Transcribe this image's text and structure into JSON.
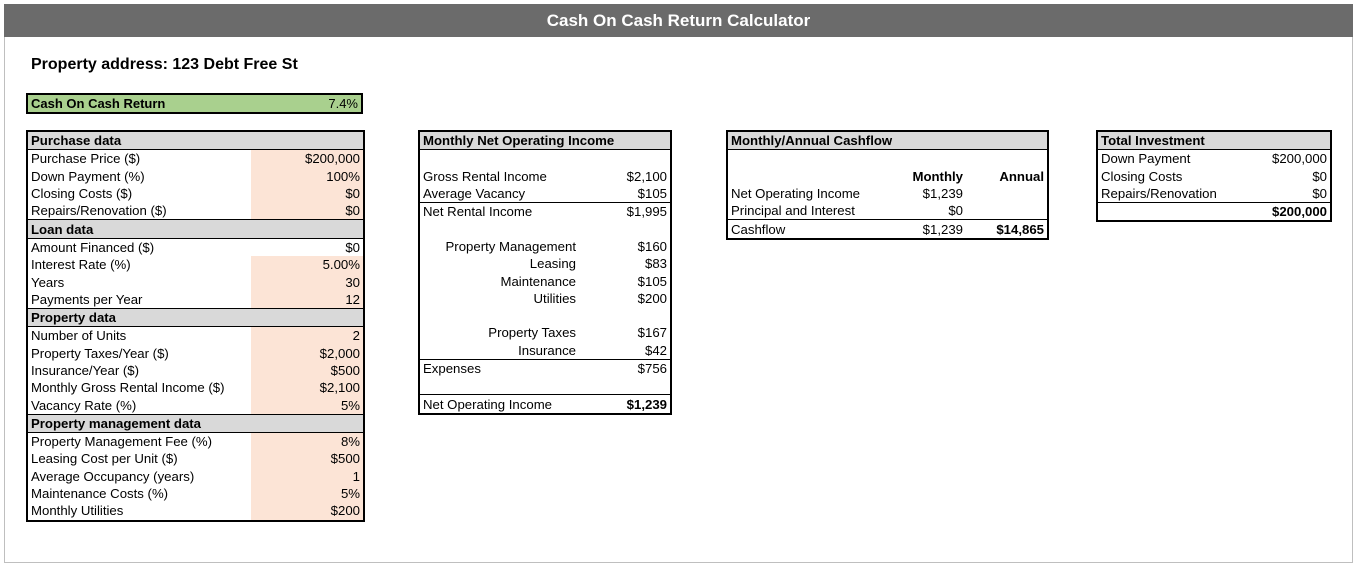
{
  "title": "Cash On Cash Return Calculator",
  "address_label": "Property address: 123 Debt Free St",
  "coc": {
    "label": "Cash On Cash Return",
    "value": "7.4%"
  },
  "purchase": {
    "header": "Purchase data",
    "rows": [
      {
        "label": "Purchase Price ($)",
        "value": "$200,000"
      },
      {
        "label": "Down Payment (%)",
        "value": "100%"
      },
      {
        "label": "Closing Costs ($)",
        "value": "$0"
      },
      {
        "label": "Repairs/Renovation ($)",
        "value": "$0"
      }
    ]
  },
  "loan": {
    "header": "Loan data",
    "rows": [
      {
        "label": "Amount Financed ($)",
        "value": "$0"
      },
      {
        "label": "Interest Rate (%)",
        "value": "5.00%"
      },
      {
        "label": "Years",
        "value": "30"
      },
      {
        "label": "Payments per Year",
        "value": "12"
      }
    ]
  },
  "property": {
    "header": "Property data",
    "rows": [
      {
        "label": "Number of Units",
        "value": "2"
      },
      {
        "label": "Property Taxes/Year ($)",
        "value": "$2,000"
      },
      {
        "label": "Insurance/Year ($)",
        "value": "$500"
      },
      {
        "label": "Monthly Gross Rental Income ($)",
        "value": "$2,100"
      },
      {
        "label": "Vacancy Rate (%)",
        "value": "5%"
      }
    ]
  },
  "management": {
    "header": "Property management data",
    "rows": [
      {
        "label": "Property Management Fee (%)",
        "value": "8%"
      },
      {
        "label": "Leasing Cost per Unit ($)",
        "value": "$500"
      },
      {
        "label": "Average Occupancy (years)",
        "value": "1"
      },
      {
        "label": "Maintenance Costs (%)",
        "value": "5%"
      },
      {
        "label": "Monthly Utilities",
        "value": "$200"
      }
    ]
  },
  "noi": {
    "header": "Monthly Net Operating Income",
    "gross": {
      "label": "Gross Rental Income",
      "value": "$2,100"
    },
    "vacancy": {
      "label": "Average Vacancy",
      "value": "$105"
    },
    "net_rental": {
      "label": "Net Rental Income",
      "value": "$1,995"
    },
    "mgmt": {
      "label": "Property Management",
      "value": "$160"
    },
    "leasing": {
      "label": "Leasing",
      "value": "$83"
    },
    "maintenance": {
      "label": "Maintenance",
      "value": "$105"
    },
    "utilities": {
      "label": "Utilities",
      "value": "$200"
    },
    "taxes": {
      "label": "Property Taxes",
      "value": "$167"
    },
    "insurance": {
      "label": "Insurance",
      "value": "$42"
    },
    "expenses": {
      "label": "Expenses",
      "value": "$756"
    },
    "total": {
      "label": "Net Operating Income",
      "value": "$1,239"
    }
  },
  "cashflow": {
    "header": "Monthly/Annual Cashflow",
    "col_monthly": "Monthly",
    "col_annual": "Annual",
    "noi": {
      "label": "Net Operating Income",
      "monthly": "$1,239"
    },
    "pi": {
      "label": "Principal and Interest",
      "monthly": "$0"
    },
    "cf": {
      "label": "Cashflow",
      "monthly": "$1,239",
      "annual": "$14,865"
    }
  },
  "investment": {
    "header": "Total Investment",
    "rows": [
      {
        "label": "Down Payment",
        "value": "$200,000"
      },
      {
        "label": "Closing Costs",
        "value": "$0"
      },
      {
        "label": "Repairs/Renovation",
        "value": "$0"
      }
    ],
    "total": "$200,000"
  }
}
